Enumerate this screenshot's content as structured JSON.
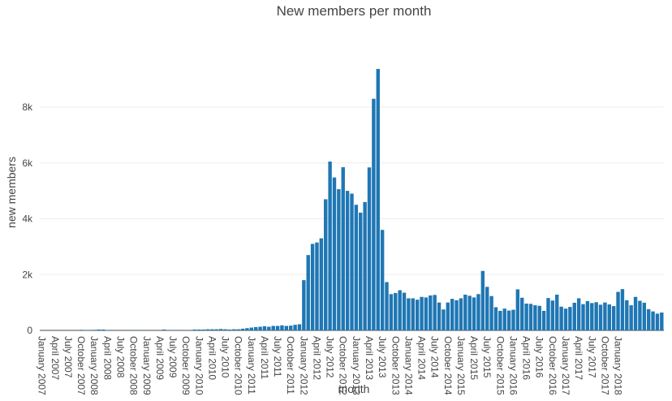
{
  "chart_data": {
    "type": "bar",
    "title": "New members per month",
    "xlabel": "month",
    "ylabel": "new members",
    "ylim": [
      0,
      9600
    ],
    "y_ticks": [
      0,
      2000,
      4000,
      6000,
      8000
    ],
    "y_tick_labels": [
      "0",
      "2k",
      "4k",
      "6k",
      "8k"
    ],
    "grid": true,
    "bar_color": "#1f77b4",
    "start_month": "January 2007",
    "x_tick_labels": [
      "January 2007",
      "April 2007",
      "July 2007",
      "October 2007",
      "January 2008",
      "April 2008",
      "July 2008",
      "October 2008",
      "January 2009",
      "April 2009",
      "July 2009",
      "October 2009",
      "January 2010",
      "April 2010",
      "July 2010",
      "October 2010",
      "January 2011",
      "April 2011",
      "July 2011",
      "October 2011",
      "January 2012",
      "April 2012",
      "July 2012",
      "October 2012",
      "January 2013",
      "April 2013",
      "July 2013",
      "October 2013",
      "January 2014",
      "April 2014",
      "July 2014",
      "October 2014",
      "January 2015",
      "April 2015",
      "July 2015",
      "October 2015",
      "January 2016",
      "April 2016",
      "July 2016",
      "October 2016",
      "January 2017",
      "April 2017",
      "July 2017",
      "October 2017",
      "January 2018"
    ],
    "values": [
      5,
      5,
      5,
      5,
      5,
      5,
      5,
      5,
      5,
      20,
      10,
      5,
      20,
      30,
      30,
      10,
      5,
      5,
      5,
      5,
      5,
      5,
      5,
      5,
      5,
      5,
      5,
      5,
      30,
      10,
      5,
      5,
      5,
      10,
      10,
      30,
      30,
      30,
      40,
      40,
      40,
      50,
      40,
      30,
      40,
      40,
      60,
      80,
      100,
      120,
      130,
      150,
      130,
      160,
      160,
      180,
      160,
      170,
      200,
      220,
      1800,
      2700,
      3100,
      3150,
      3300,
      4700,
      6050,
      5480,
      5060,
      5850,
      5000,
      4900,
      4500,
      4220,
      4600,
      5840,
      8300,
      9370,
      3600,
      1730,
      1300,
      1340,
      1440,
      1350,
      1150,
      1150,
      1100,
      1200,
      1180,
      1250,
      1270,
      1000,
      750,
      1000,
      1130,
      1080,
      1150,
      1280,
      1240,
      1180,
      1300,
      2130,
      1560,
      1230,
      830,
      700,
      780,
      710,
      740,
      1470,
      1170,
      960,
      950,
      900,
      880,
      700,
      1160,
      1070,
      1280,
      850,
      780,
      840,
      990,
      1150,
      940,
      1050,
      980,
      1010,
      920,
      1000,
      930,
      870,
      1380,
      1480,
      1080,
      900,
      1200,
      1060,
      990,
      760,
      680,
      600,
      640
    ]
  }
}
